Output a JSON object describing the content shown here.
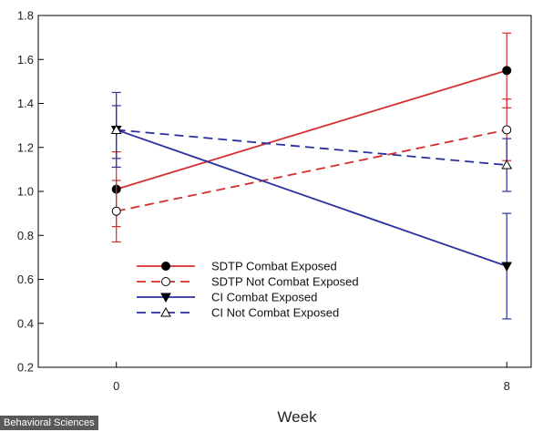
{
  "watermark": "Behavioral Sciences",
  "colors": {
    "red": "#d42e2e",
    "blue": "#2b2fa0",
    "axis": "#000000"
  },
  "chart_data": {
    "type": "line",
    "title": "",
    "xlabel": "Week",
    "ylabel": "",
    "xlim": [
      -1.6,
      8.5
    ],
    "ylim": [
      0.2,
      1.8
    ],
    "x_ticks": [
      0,
      8
    ],
    "x_tick_labels": [
      "0",
      "8"
    ],
    "y_ticks": [
      0.2,
      0.4,
      0.6,
      0.8,
      1.0,
      1.2,
      1.4,
      1.6,
      1.8
    ],
    "y_tick_labels": [
      "0.2",
      "0.4",
      "0.6",
      "0.8",
      "1.0",
      "1.2",
      "1.4",
      "1.6",
      "1.8"
    ],
    "grid": false,
    "legend_position": "lower-left",
    "x": [
      0,
      8
    ],
    "series": [
      {
        "name": "SDTP Combat Exposed",
        "values": [
          1.01,
          1.55
        ],
        "error_low": [
          0.84,
          1.38
        ],
        "error_high": [
          1.18,
          1.72
        ],
        "color": "#d42e2e",
        "dash": "solid",
        "marker": "circle-filled"
      },
      {
        "name": "SDTP Not Combat Exposed",
        "values": [
          0.91,
          1.28
        ],
        "error_low": [
          0.77,
          1.14
        ],
        "error_high": [
          1.05,
          1.42
        ],
        "color": "#d42e2e",
        "dash": "dashed",
        "marker": "circle-open"
      },
      {
        "name": "CI Combat Exposed",
        "values": [
          1.28,
          0.66
        ],
        "error_low": [
          1.11,
          0.42
        ],
        "error_high": [
          1.45,
          0.9
        ],
        "color": "#2b2fa0",
        "dash": "solid",
        "marker": "triangle-down-filled"
      },
      {
        "name": "CI Not Combat Exposed",
        "values": [
          1.28,
          1.12
        ],
        "error_low": [
          1.15,
          1.0
        ],
        "error_high": [
          1.39,
          1.24
        ],
        "color": "#2b2fa0",
        "dash": "dashed",
        "marker": "triangle-up-open"
      }
    ]
  }
}
